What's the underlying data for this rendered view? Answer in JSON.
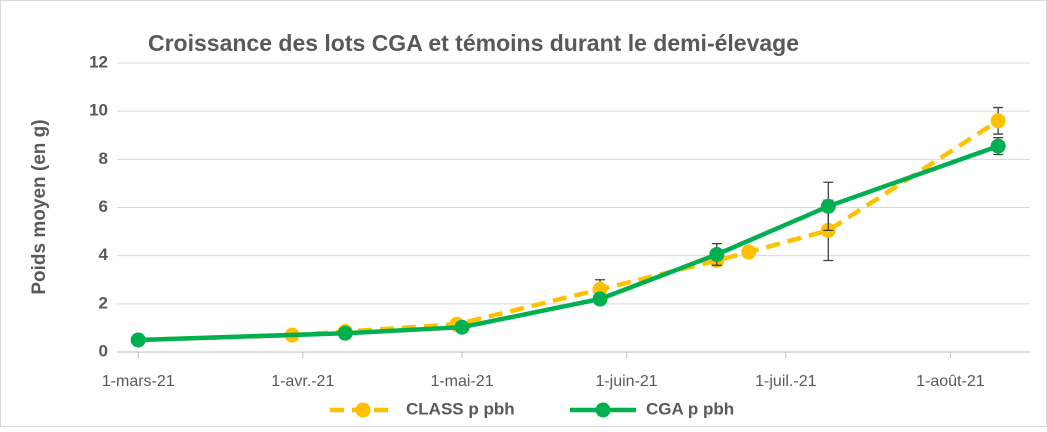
{
  "chart_data": {
    "type": "line",
    "title": "Croissance des lots CGA et témoins durant le demi-élevage",
    "y_label": "Poids moyen (en g)",
    "ylim": [
      0,
      12
    ],
    "yticks": [
      0,
      2,
      4,
      6,
      8,
      10,
      12
    ],
    "grid": true,
    "xlim": [
      "2021-02-25",
      "2021-08-16"
    ],
    "xticks": [
      {
        "value": "2021-03-01",
        "label": "1-mars-21"
      },
      {
        "value": "2021-04-01",
        "label": "1-avr.-21"
      },
      {
        "value": "2021-05-01",
        "label": "1-mai-21"
      },
      {
        "value": "2021-06-01",
        "label": "1-juin-21"
      },
      {
        "value": "2021-07-01",
        "label": "1-juil.-21"
      },
      {
        "value": "2021-08-01",
        "label": "1-août-21"
      }
    ],
    "legend": "bottom",
    "series": [
      {
        "name": "CLASS p pbh",
        "color": "#FFC000",
        "dashed": true,
        "x": [
          "2021-03-01",
          "2021-03-30",
          "2021-04-09",
          "2021-04-30",
          "2021-05-27",
          "2021-06-18",
          "2021-06-24",
          "2021-07-09",
          "2021-08-10"
        ],
        "values": [
          0.5,
          0.7,
          0.85,
          1.15,
          2.6,
          3.8,
          4.15,
          5.05,
          9.6
        ],
        "errors": [
          null,
          null,
          null,
          null,
          0.4,
          null,
          null,
          1.25,
          0.55
        ]
      },
      {
        "name": "CGA p pbh",
        "color": "#00B050",
        "dashed": false,
        "x": [
          "2021-03-01",
          "2021-04-09",
          "2021-05-01",
          "2021-05-27",
          "2021-06-18",
          "2021-07-09",
          "2021-08-10"
        ],
        "values": [
          0.5,
          0.78,
          1.03,
          2.2,
          4.05,
          6.05,
          8.55
        ],
        "errors": [
          null,
          null,
          null,
          null,
          0.45,
          1.0,
          0.35
        ]
      }
    ]
  }
}
